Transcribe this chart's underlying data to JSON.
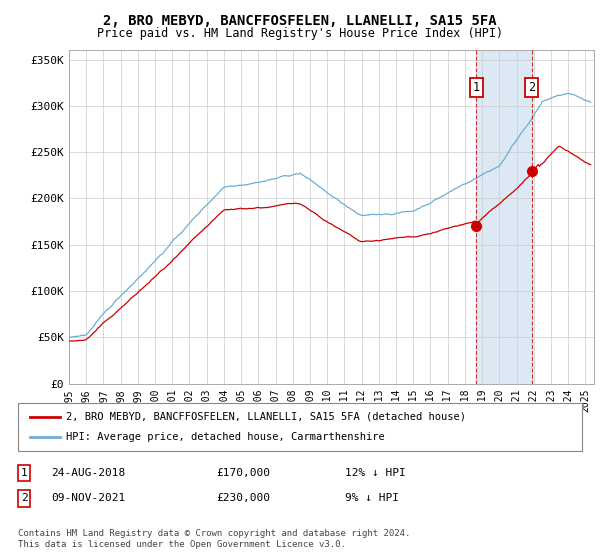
{
  "title": "2, BRO MEBYD, BANCFFOSFELEN, LLANELLI, SA15 5FA",
  "subtitle": "Price paid vs. HM Land Registry's House Price Index (HPI)",
  "legend_line1": "2, BRO MEBYD, BANCFFOSFELEN, LLANELLI, SA15 5FA (detached house)",
  "legend_line2": "HPI: Average price, detached house, Carmarthenshire",
  "annotation1_label": "1",
  "annotation1_date": "24-AUG-2018",
  "annotation1_price": "£170,000",
  "annotation1_hpi": "12% ↓ HPI",
  "annotation1_year": 2018.65,
  "annotation1_value": 170000,
  "annotation2_label": "2",
  "annotation2_date": "09-NOV-2021",
  "annotation2_price": "£230,000",
  "annotation2_hpi": "9% ↓ HPI",
  "annotation2_year": 2021.87,
  "annotation2_value": 230000,
  "footer": "Contains HM Land Registry data © Crown copyright and database right 2024.\nThis data is licensed under the Open Government Licence v3.0.",
  "hpi_color": "#6baed6",
  "price_color": "#cc0000",
  "background_color": "#ffffff",
  "plot_bg_color": "#ffffff",
  "highlight_bg_color": "#dce9f5",
  "grid_color": "#cccccc",
  "ylim": [
    0,
    360000
  ],
  "yticks": [
    0,
    50000,
    100000,
    150000,
    200000,
    250000,
    300000,
    350000
  ],
  "ytick_labels": [
    "£0",
    "£50K",
    "£100K",
    "£150K",
    "£200K",
    "£250K",
    "£300K",
    "£350K"
  ],
  "xlim_start": 1995.0,
  "xlim_end": 2025.5,
  "xticks": [
    1995,
    1996,
    1997,
    1998,
    1999,
    2000,
    2001,
    2002,
    2003,
    2004,
    2005,
    2006,
    2007,
    2008,
    2009,
    2010,
    2011,
    2012,
    2013,
    2014,
    2015,
    2016,
    2017,
    2018,
    2019,
    2020,
    2021,
    2022,
    2023,
    2024,
    2025
  ]
}
